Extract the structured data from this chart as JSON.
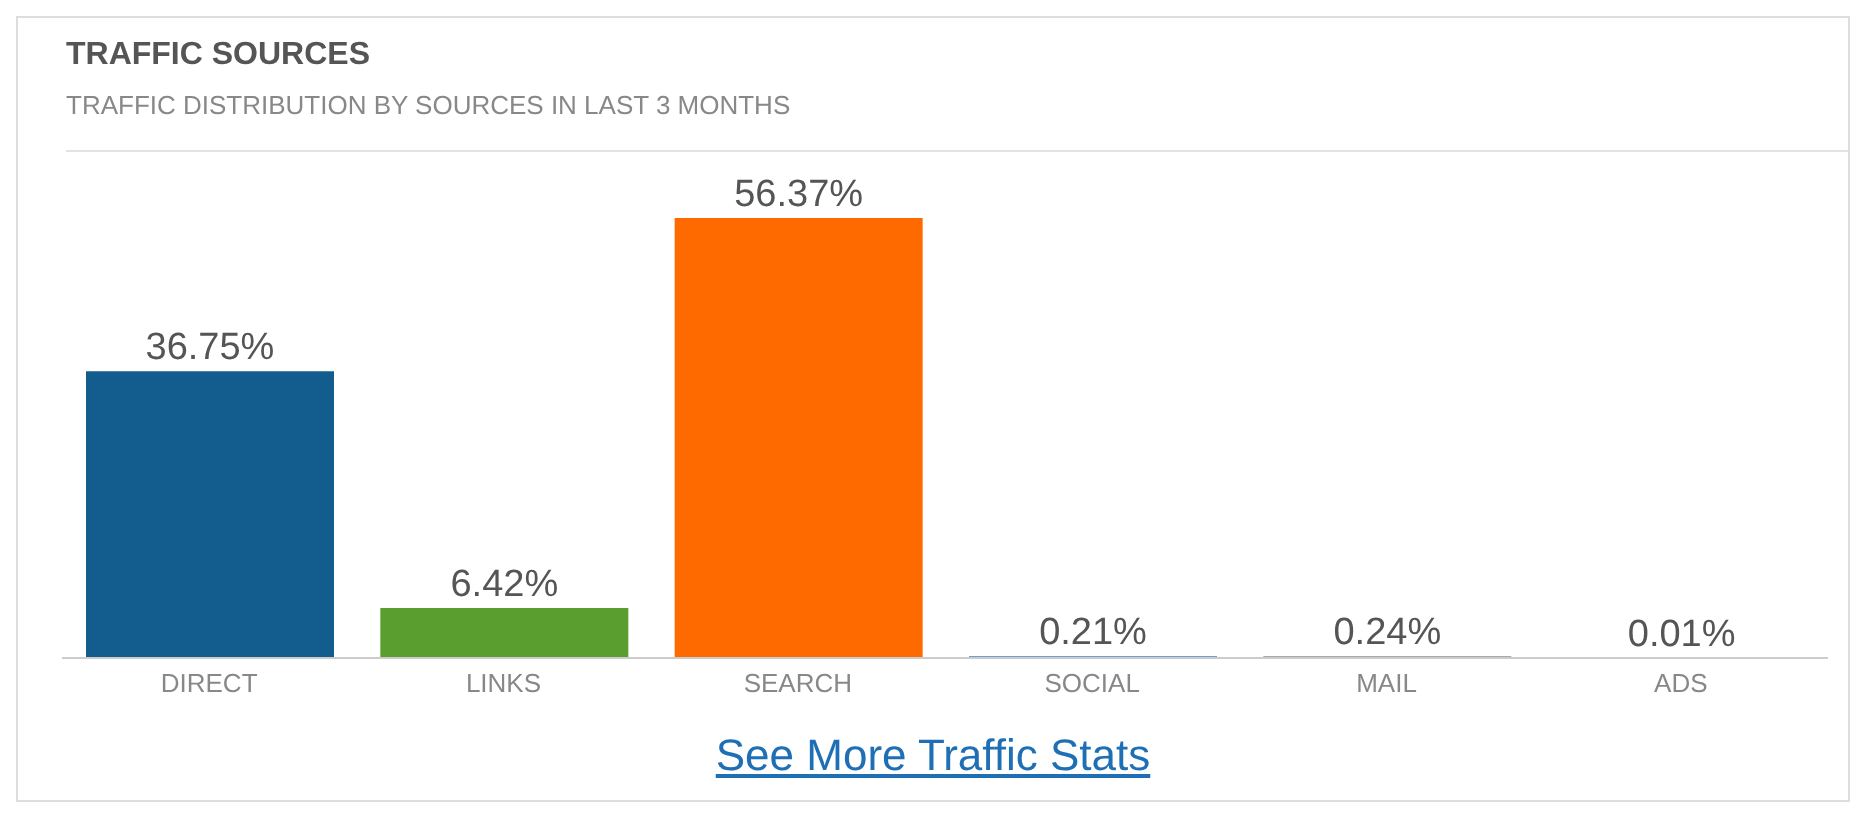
{
  "chart_data": {
    "type": "bar",
    "title": "TRAFFIC SOURCES",
    "subtitle": "TRAFFIC DISTRIBUTION BY SOURCES IN LAST 3 MONTHS",
    "categories": [
      "DIRECT",
      "LINKS",
      "SEARCH",
      "SOCIAL",
      "MAIL",
      "ADS"
    ],
    "values": [
      36.75,
      6.42,
      56.37,
      0.21,
      0.24,
      0.01
    ],
    "colors": [
      "#125d8d",
      "#5a9e2f",
      "#ff6a00",
      "#3f7fbf",
      "#8c8c8c",
      "#c0392b"
    ],
    "value_labels": [
      "36.75%",
      "6.42%",
      "56.37%",
      "0.21%",
      "0.24%",
      "0.01%"
    ],
    "annotations": [
      "See More Traffic Stats"
    ],
    "grid": false,
    "legend": false
  }
}
